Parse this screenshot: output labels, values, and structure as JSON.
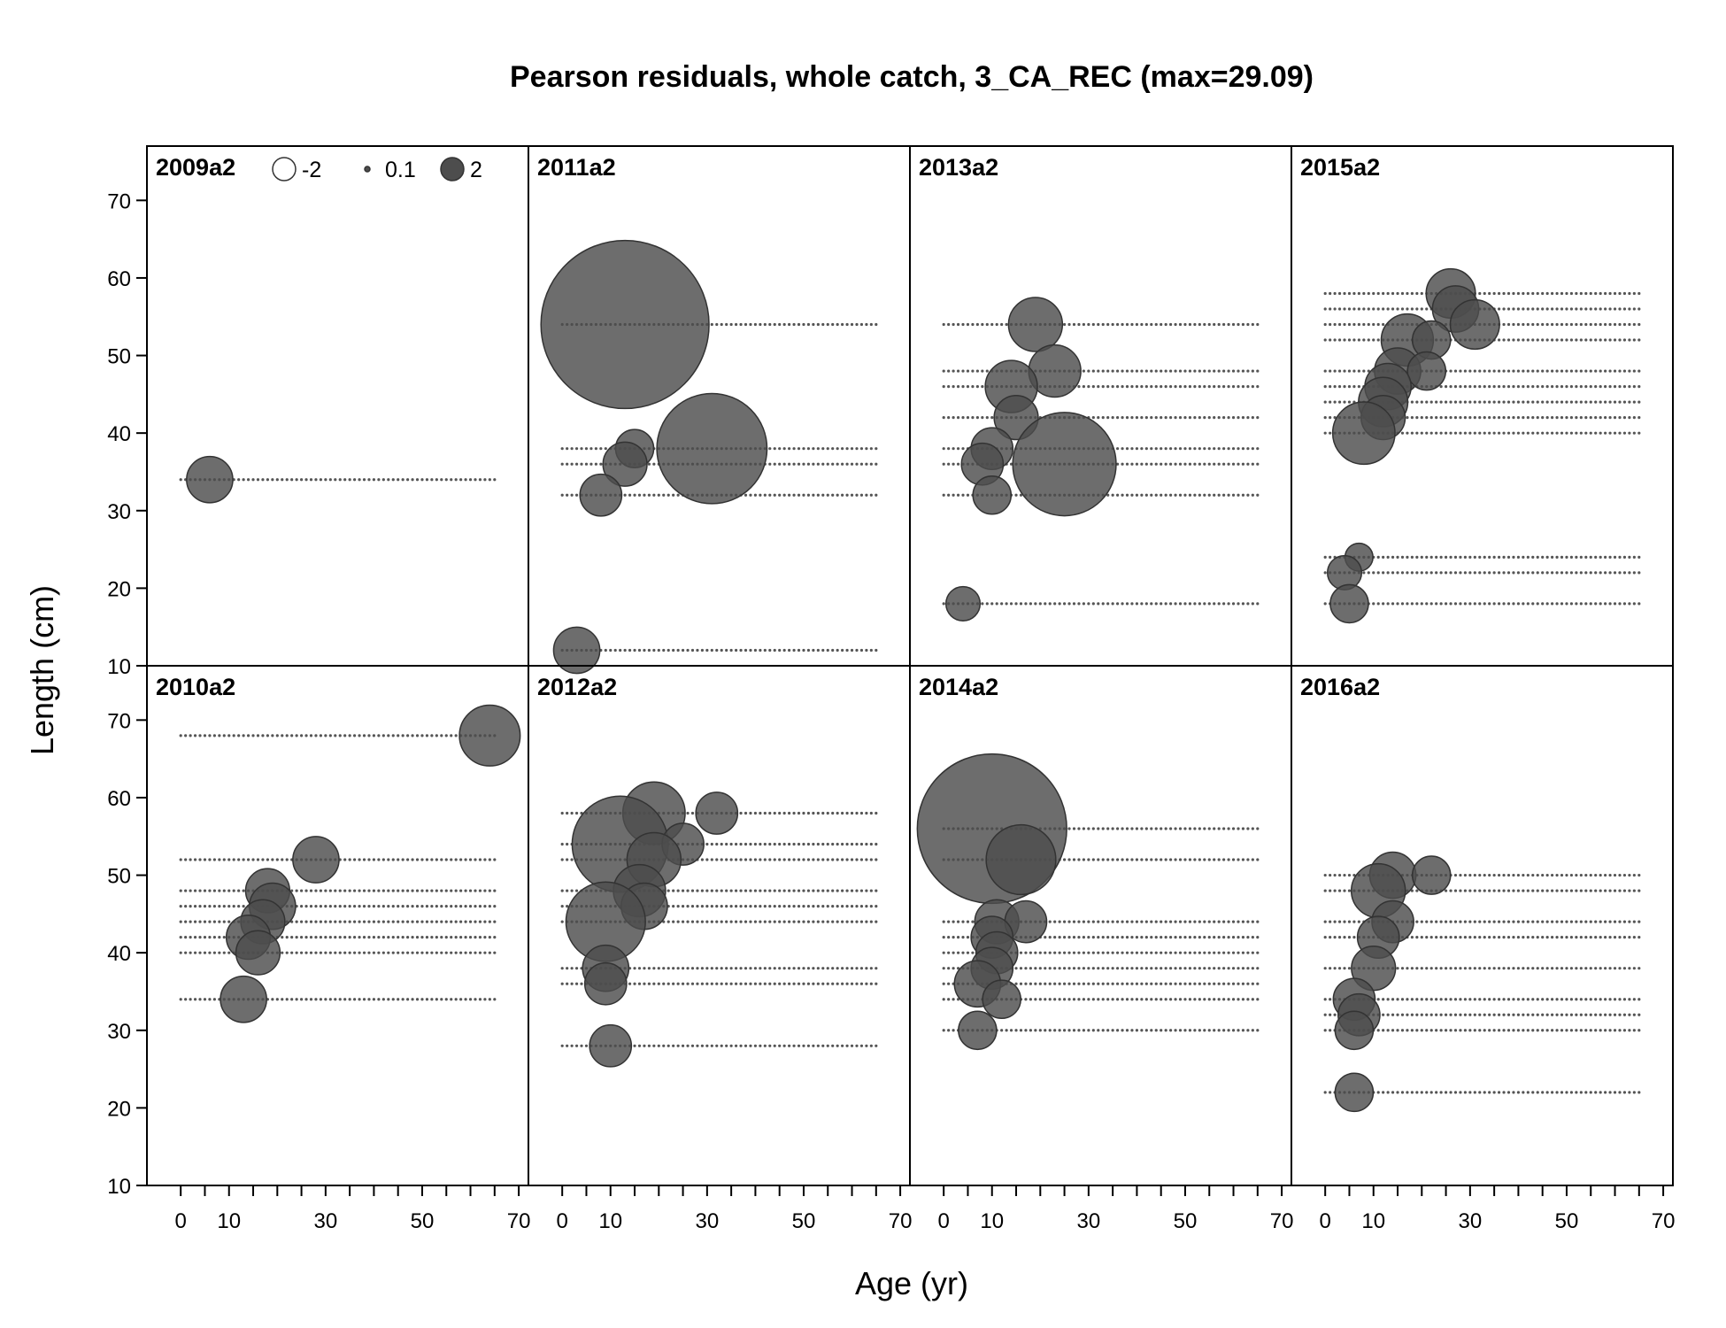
{
  "chart_data": {
    "type": "scatter",
    "subtype": "bubble-residuals",
    "title": "Pearson residuals, whole catch, 3_CA_REC (max=29.09)",
    "xlabel": "Age (yr)",
    "ylabel": "Length (cm)",
    "xlim": [
      -7,
      72
    ],
    "ylim": [
      10,
      77
    ],
    "x_ticks": [
      0,
      10,
      30,
      50,
      70
    ],
    "y_ticks": [
      10,
      20,
      30,
      40,
      50,
      60,
      70
    ],
    "colors": {
      "positive_fill": "#4d4d4d",
      "negative_fill": "#ffffff",
      "stroke": "#333333"
    },
    "legend": {
      "placement": "top-left, inside panel 2009a2",
      "entries": [
        {
          "label": "-2",
          "value": -2
        },
        {
          "label": "0.1",
          "value": 0.1
        },
        {
          "label": "2",
          "value": 2
        }
      ]
    },
    "panels": [
      {
        "label": "2009a2",
        "rows": [
          {
            "length": 34,
            "age_min": 0,
            "age_max": 65
          }
        ],
        "bubbles": [
          {
            "age": 6,
            "length": 34,
            "value": 2.2
          }
        ]
      },
      {
        "label": "2010a2",
        "rows": [
          {
            "length": 68,
            "age_min": 0,
            "age_max": 65
          },
          {
            "length": 52,
            "age_min": 0,
            "age_max": 65
          },
          {
            "length": 48,
            "age_min": 0,
            "age_max": 65
          },
          {
            "length": 46,
            "age_min": 0,
            "age_max": 65
          },
          {
            "length": 44,
            "age_min": 0,
            "age_max": 65
          },
          {
            "length": 42,
            "age_min": 0,
            "age_max": 65
          },
          {
            "length": 40,
            "age_min": 0,
            "age_max": 65
          },
          {
            "length": 34,
            "age_min": 0,
            "age_max": 65
          }
        ],
        "bubbles": [
          {
            "age": 64,
            "length": 68,
            "value": 3.8
          },
          {
            "age": 28,
            "length": 52,
            "value": 2.2
          },
          {
            "age": 18,
            "length": 48,
            "value": 2.0
          },
          {
            "age": 19,
            "length": 46,
            "value": 2.2
          },
          {
            "age": 17,
            "length": 44,
            "value": 2.0
          },
          {
            "age": 14,
            "length": 42,
            "value": 2.0
          },
          {
            "age": 16,
            "length": 40,
            "value": 2.0
          },
          {
            "age": 13,
            "length": 34,
            "value": 2.2
          }
        ]
      },
      {
        "label": "2011a2",
        "rows": [
          {
            "length": 54,
            "age_min": 0,
            "age_max": 65
          },
          {
            "length": 38,
            "age_min": 0,
            "age_max": 65
          },
          {
            "length": 36,
            "age_min": 0,
            "age_max": 65
          },
          {
            "length": 32,
            "age_min": 0,
            "age_max": 65
          },
          {
            "length": 12,
            "age_min": 0,
            "age_max": 65
          }
        ],
        "bubbles": [
          {
            "age": 13,
            "length": 54,
            "value": 29.09
          },
          {
            "age": 31,
            "length": 38,
            "value": 12.5
          },
          {
            "age": 15,
            "length": 38,
            "value": 1.5
          },
          {
            "age": 13,
            "length": 36,
            "value": 2.0
          },
          {
            "age": 8,
            "length": 32,
            "value": 1.8
          },
          {
            "age": 3,
            "length": 12,
            "value": 2.2
          }
        ]
      },
      {
        "label": "2012a2",
        "rows": [
          {
            "length": 58,
            "age_min": 0,
            "age_max": 65
          },
          {
            "length": 54,
            "age_min": 0,
            "age_max": 65
          },
          {
            "length": 52,
            "age_min": 0,
            "age_max": 65
          },
          {
            "length": 48,
            "age_min": 0,
            "age_max": 65
          },
          {
            "length": 46,
            "age_min": 0,
            "age_max": 65
          },
          {
            "length": 44,
            "age_min": 0,
            "age_max": 65
          },
          {
            "length": 38,
            "age_min": 0,
            "age_max": 65
          },
          {
            "length": 36,
            "age_min": 0,
            "age_max": 65
          },
          {
            "length": 28,
            "age_min": 0,
            "age_max": 65
          }
        ],
        "bubbles": [
          {
            "age": 19,
            "length": 58,
            "value": 4.0
          },
          {
            "age": 32,
            "length": 58,
            "value": 1.8
          },
          {
            "age": 12,
            "length": 54,
            "value": 9.5
          },
          {
            "age": 25,
            "length": 54,
            "value": 1.8
          },
          {
            "age": 19,
            "length": 52,
            "value": 3.0
          },
          {
            "age": 16,
            "length": 48,
            "value": 2.8
          },
          {
            "age": 17,
            "length": 46,
            "value": 2.2
          },
          {
            "age": 9,
            "length": 44,
            "value": 6.5
          },
          {
            "age": 9,
            "length": 38,
            "value": 2.2
          },
          {
            "age": 9,
            "length": 36,
            "value": 1.8
          },
          {
            "age": 10,
            "length": 28,
            "value": 1.8
          }
        ]
      },
      {
        "label": "2013a2",
        "rows": [
          {
            "length": 54,
            "age_min": 0,
            "age_max": 65
          },
          {
            "length": 48,
            "age_min": 0,
            "age_max": 65
          },
          {
            "length": 46,
            "age_min": 0,
            "age_max": 65
          },
          {
            "length": 42,
            "age_min": 0,
            "age_max": 65
          },
          {
            "length": 38,
            "age_min": 0,
            "age_max": 65
          },
          {
            "length": 36,
            "age_min": 0,
            "age_max": 65
          },
          {
            "length": 32,
            "age_min": 0,
            "age_max": 65
          },
          {
            "length": 18,
            "age_min": 0,
            "age_max": 65
          }
        ],
        "bubbles": [
          {
            "age": 19,
            "length": 54,
            "value": 3.0
          },
          {
            "age": 23,
            "length": 48,
            "value": 2.8
          },
          {
            "age": 14,
            "length": 46,
            "value": 2.8
          },
          {
            "age": 15,
            "length": 42,
            "value": 2.0
          },
          {
            "age": 10,
            "length": 38,
            "value": 1.8
          },
          {
            "age": 25,
            "length": 36,
            "value": 11.0
          },
          {
            "age": 8,
            "length": 36,
            "value": 1.8
          },
          {
            "age": 10,
            "length": 32,
            "value": 1.5
          },
          {
            "age": 4,
            "length": 18,
            "value": 1.2
          }
        ]
      },
      {
        "label": "2014a2",
        "rows": [
          {
            "length": 56,
            "age_min": 0,
            "age_max": 65
          },
          {
            "length": 52,
            "age_min": 0,
            "age_max": 65
          },
          {
            "length": 44,
            "age_min": 0,
            "age_max": 65
          },
          {
            "length": 42,
            "age_min": 0,
            "age_max": 65
          },
          {
            "length": 40,
            "age_min": 0,
            "age_max": 65
          },
          {
            "length": 38,
            "age_min": 0,
            "age_max": 65
          },
          {
            "length": 36,
            "age_min": 0,
            "age_max": 65
          },
          {
            "length": 34,
            "age_min": 0,
            "age_max": 65
          },
          {
            "length": 30,
            "age_min": 0,
            "age_max": 65
          }
        ],
        "bubbles": [
          {
            "age": 10,
            "length": 56,
            "value": 23.0
          },
          {
            "age": 16,
            "length": 52,
            "value": 5.0
          },
          {
            "age": 11,
            "length": 44,
            "value": 2.0
          },
          {
            "age": 17,
            "length": 44,
            "value": 1.8
          },
          {
            "age": 10,
            "length": 42,
            "value": 1.8
          },
          {
            "age": 11,
            "length": 40,
            "value": 1.8
          },
          {
            "age": 10,
            "length": 38,
            "value": 1.8
          },
          {
            "age": 7,
            "length": 36,
            "value": 2.2
          },
          {
            "age": 12,
            "length": 34,
            "value": 1.5
          },
          {
            "age": 7,
            "length": 30,
            "value": 1.5
          }
        ]
      },
      {
        "label": "2015a2",
        "rows": [
          {
            "length": 58,
            "age_min": 0,
            "age_max": 65
          },
          {
            "length": 56,
            "age_min": 0,
            "age_max": 65
          },
          {
            "length": 54,
            "age_min": 0,
            "age_max": 65
          },
          {
            "length": 52,
            "age_min": 0,
            "age_max": 65
          },
          {
            "length": 48,
            "age_min": 0,
            "age_max": 65
          },
          {
            "length": 46,
            "age_min": 0,
            "age_max": 65
          },
          {
            "length": 44,
            "age_min": 0,
            "age_max": 65
          },
          {
            "length": 42,
            "age_min": 0,
            "age_max": 65
          },
          {
            "length": 40,
            "age_min": 0,
            "age_max": 65
          },
          {
            "length": 24,
            "age_min": 0,
            "age_max": 65
          },
          {
            "length": 22,
            "age_min": 0,
            "age_max": 65
          },
          {
            "length": 18,
            "age_min": 0,
            "age_max": 65
          }
        ],
        "bubbles": [
          {
            "age": 26,
            "length": 58,
            "value": 2.5
          },
          {
            "age": 27,
            "length": 56,
            "value": 2.2
          },
          {
            "age": 31,
            "length": 54,
            "value": 2.5
          },
          {
            "age": 17,
            "length": 52,
            "value": 2.8
          },
          {
            "age": 22,
            "length": 52,
            "value": 1.5
          },
          {
            "age": 15,
            "length": 48,
            "value": 2.2
          },
          {
            "age": 21,
            "length": 48,
            "value": 1.5
          },
          {
            "age": 13,
            "length": 46,
            "value": 2.2
          },
          {
            "age": 12,
            "length": 44,
            "value": 2.5
          },
          {
            "age": 12,
            "length": 42,
            "value": 2.0
          },
          {
            "age": 8,
            "length": 40,
            "value": 4.0
          },
          {
            "age": 7,
            "length": 24,
            "value": 0.8
          },
          {
            "age": 4,
            "length": 22,
            "value": 1.2
          },
          {
            "age": 5,
            "length": 18,
            "value": 1.5
          }
        ]
      },
      {
        "label": "2016a2",
        "rows": [
          {
            "length": 50,
            "age_min": 0,
            "age_max": 65
          },
          {
            "length": 48,
            "age_min": 0,
            "age_max": 65
          },
          {
            "length": 44,
            "age_min": 0,
            "age_max": 65
          },
          {
            "length": 42,
            "age_min": 0,
            "age_max": 65
          },
          {
            "length": 38,
            "age_min": 0,
            "age_max": 65
          },
          {
            "length": 34,
            "age_min": 0,
            "age_max": 65
          },
          {
            "length": 32,
            "age_min": 0,
            "age_max": 65
          },
          {
            "length": 30,
            "age_min": 0,
            "age_max": 65
          },
          {
            "length": 22,
            "age_min": 0,
            "age_max": 65
          }
        ],
        "bubbles": [
          {
            "age": 14,
            "length": 50,
            "value": 2.2
          },
          {
            "age": 22,
            "length": 50,
            "value": 1.5
          },
          {
            "age": 11,
            "length": 48,
            "value": 3.0
          },
          {
            "age": 14,
            "length": 44,
            "value": 1.8
          },
          {
            "age": 11,
            "length": 42,
            "value": 1.8
          },
          {
            "age": 10,
            "length": 38,
            "value": 2.0
          },
          {
            "age": 6,
            "length": 34,
            "value": 1.8
          },
          {
            "age": 7,
            "length": 32,
            "value": 1.8
          },
          {
            "age": 6,
            "length": 30,
            "value": 1.5
          },
          {
            "age": 6,
            "length": 22,
            "value": 1.5
          }
        ]
      }
    ]
  }
}
